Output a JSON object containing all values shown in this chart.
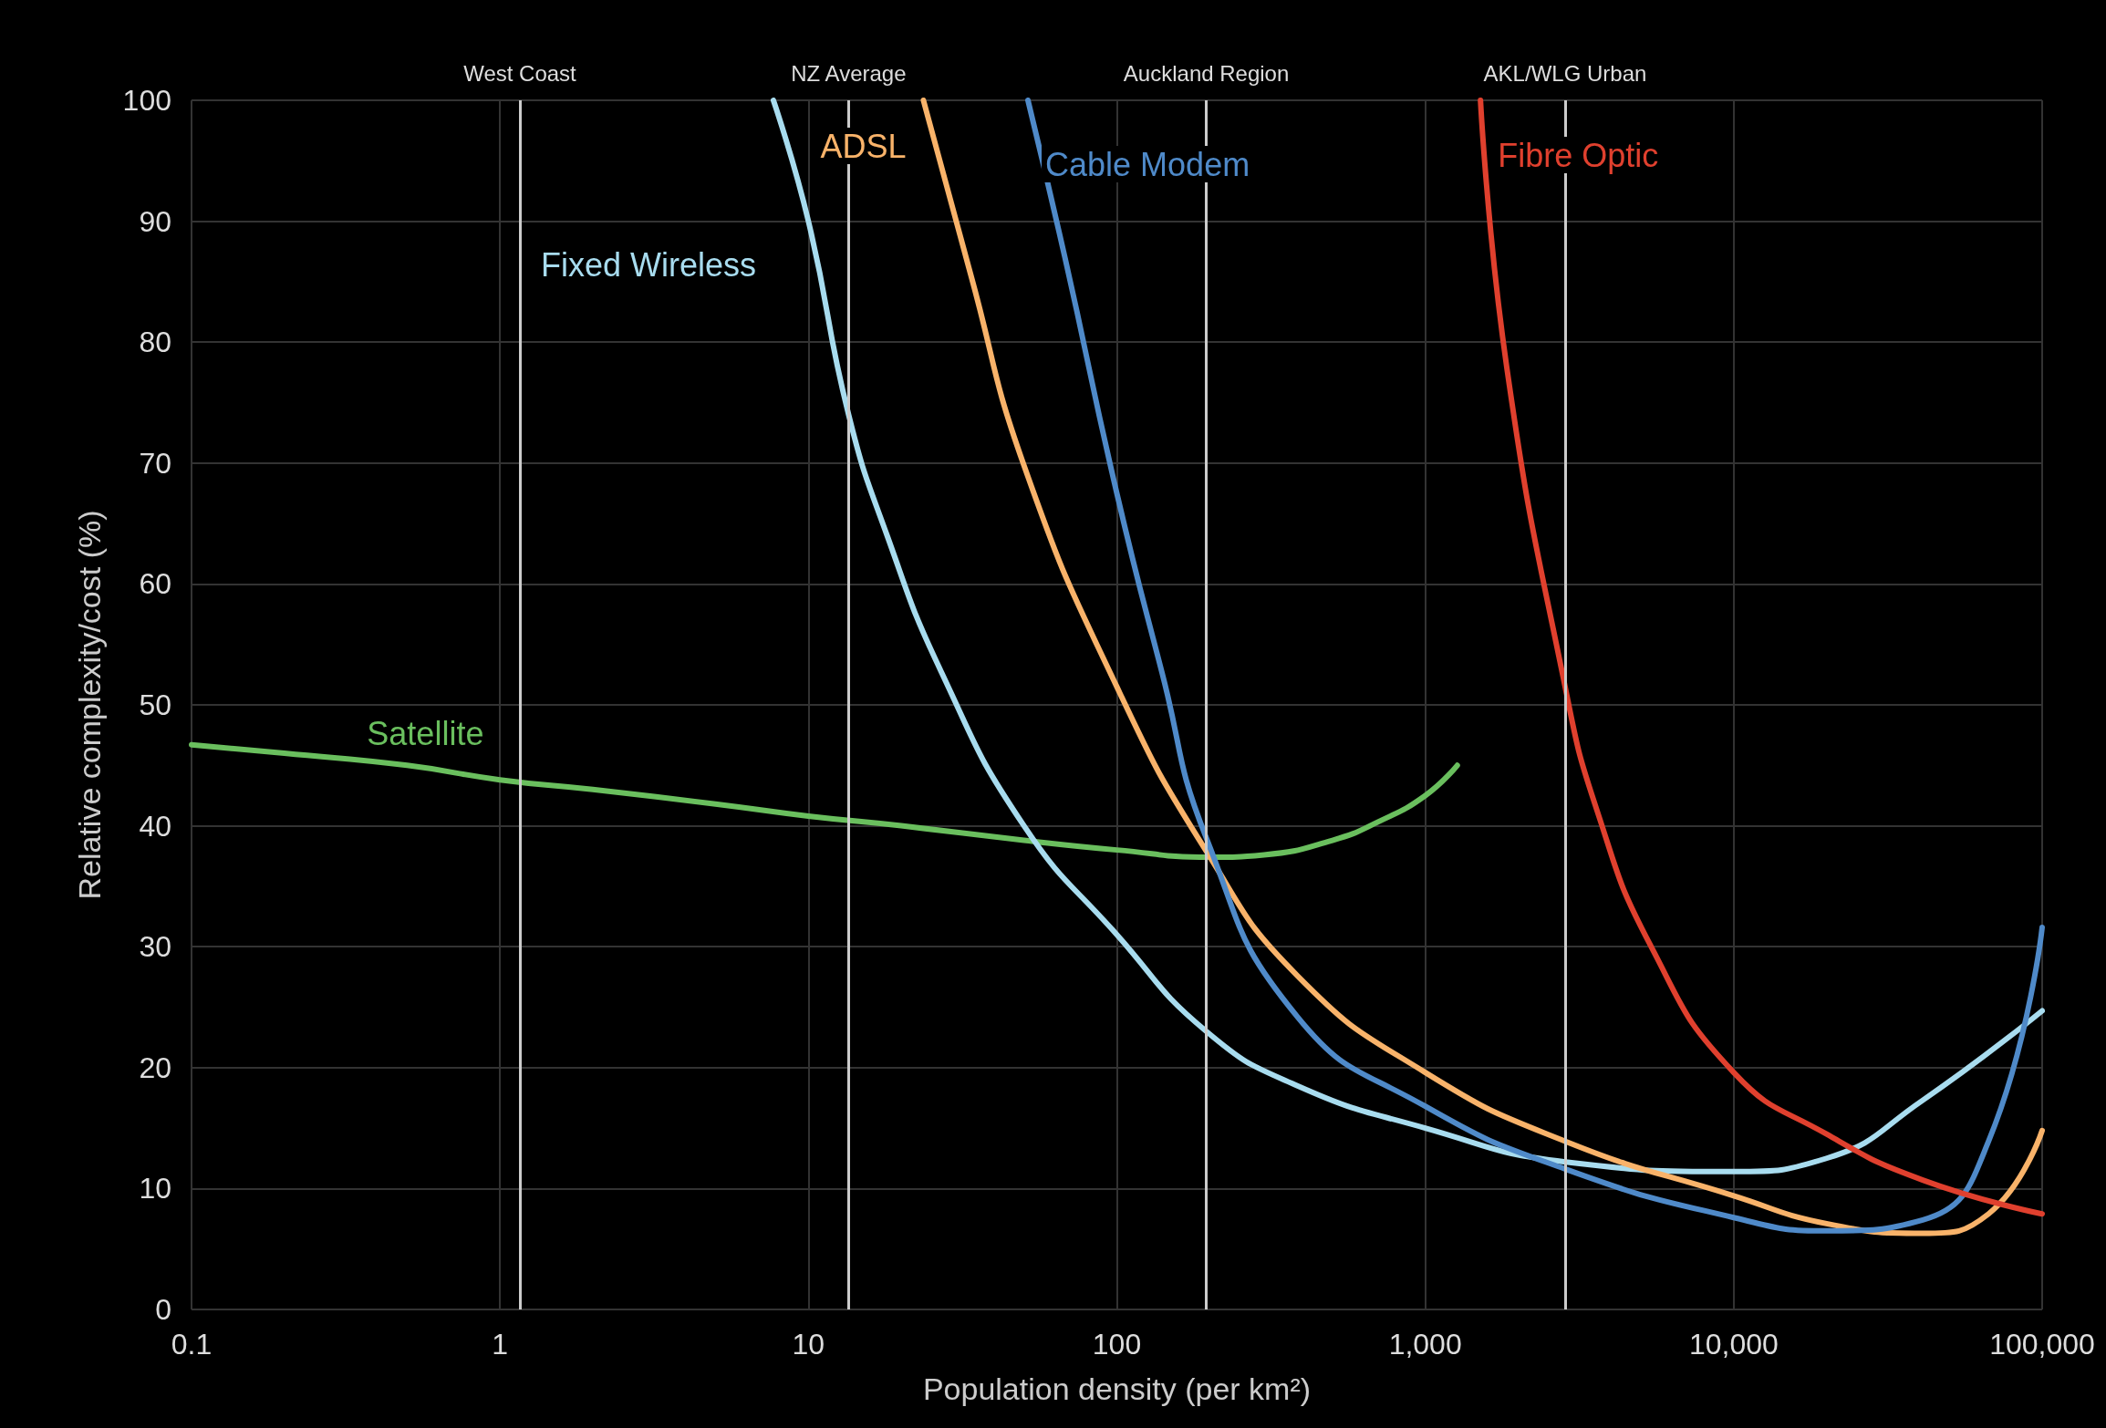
{
  "chart_data": {
    "type": "line",
    "xlabel": "Population density (per km²)",
    "ylabel": "Relative complexity/cost (%)",
    "log": "x",
    "xlim": [
      0.1,
      100000
    ],
    "xticks": [
      0.1,
      1,
      10,
      100,
      {
        "value": 1000,
        "label": "1,000"
      },
      {
        "value": 10000,
        "label": "10,000"
      },
      {
        "value": 100000,
        "label": "100,000"
      }
    ],
    "ylim": [
      0,
      100
    ],
    "yticks": [
      0,
      10,
      20,
      30,
      40,
      50,
      60,
      70,
      80,
      90,
      100
    ],
    "grid": true,
    "legend": false,
    "marker": "none",
    "line_style": "solid",
    "series": [
      {
        "name": "Satellite",
        "color": "#6abf5e",
        "x": [
          0.1,
          0.2,
          0.5,
          1,
          2,
          5,
          10,
          20,
          50,
          100,
          200,
          300,
          500,
          700,
          1000,
          1270
        ],
        "values": [
          46.7,
          46,
          45,
          43.8,
          43,
          41.8,
          40.8,
          40,
          38.8,
          38,
          37.4,
          37.6,
          38.8,
          40.3,
          42.5,
          45
        ]
      },
      {
        "name": "Fixed Wireless",
        "color": "#a8dcef",
        "x": [
          7.7,
          10,
          13.5,
          18,
          27,
          50,
          100,
          195,
          385,
          1000,
          2850,
          10000,
          20000,
          41000,
          100000
        ],
        "values": [
          100,
          90,
          74,
          64,
          52.7,
          40,
          31,
          23,
          18.5,
          15,
          12.2,
          11.4,
          12.5,
          17.3,
          24.7
        ]
      },
      {
        "name": "ADSL",
        "color": "#f9b36a",
        "x": [
          23.6,
          33.5,
          50,
          100,
          195,
          385,
          1000,
          2850,
          10000,
          20000,
          41000,
          67000,
          100000
        ],
        "values": [
          100,
          85.7,
          69.8,
          51.5,
          37.9,
          27.6,
          19.6,
          13.9,
          9.4,
          7.1,
          6.3,
          7.9,
          14.8
        ]
      },
      {
        "name": "Cable Modem",
        "color": "#4f8ac9",
        "x": [
          51.5,
          68,
          100,
          140,
          195,
          385,
          1000,
          2850,
          10000,
          20000,
          41000,
          67000,
          100000
        ],
        "values": [
          100,
          86.9,
          67.5,
          52.7,
          39,
          24.2,
          16.8,
          11.6,
          7.6,
          6.5,
          7.4,
          13.9,
          31.6
        ]
      },
      {
        "name": "Fibre Optic",
        "color": "#e0402e",
        "x": [
          1510,
          1840,
          2840,
          3600,
          5400,
          10000,
          20000,
          41000,
          100000
        ],
        "values": [
          100,
          77.8,
          51.5,
          41.3,
          30,
          19.6,
          14.5,
          10.7,
          7.9
        ]
      }
    ],
    "ref_lines": [
      {
        "axis": "x",
        "value": 1.155,
        "label": "West Coast",
        "color": "#cccccc"
      },
      {
        "axis": "x",
        "value": 13.5,
        "label": "NZ Average",
        "color": "#cccccc"
      },
      {
        "axis": "x",
        "value": 195,
        "label": "Auckland Region",
        "color": "#cccccc"
      },
      {
        "axis": "x",
        "value": 2840,
        "label": "AKL/WLG Urban",
        "color": "#cccccc"
      }
    ]
  }
}
